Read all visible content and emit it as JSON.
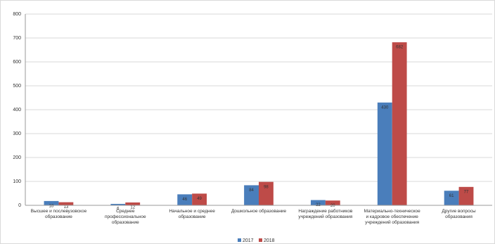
{
  "chart_data": {
    "type": "bar",
    "categories": [
      "Высшее и послевузовское образование",
      "Среднее профессиональное образование",
      "Начальное и среднее образование",
      "Дошкольное образование",
      "Награждение работников учреждений образования",
      "Материально-техническое и кадровое обеспечение учреждений образования",
      "Другие вопросы образования"
    ],
    "series": [
      {
        "name": "2017",
        "color": "#4a7ebb",
        "values": [
          18,
          6,
          46,
          84,
          22,
          430,
          61
        ]
      },
      {
        "name": "2018",
        "color": "#be4b48",
        "values": [
          13,
          12,
          49,
          98,
          20,
          682,
          77
        ]
      }
    ],
    "ylim": [
      0,
      800
    ],
    "yticks": [
      0,
      100,
      200,
      300,
      400,
      500,
      600,
      700,
      800
    ],
    "grid": true,
    "legend": "bottom"
  }
}
